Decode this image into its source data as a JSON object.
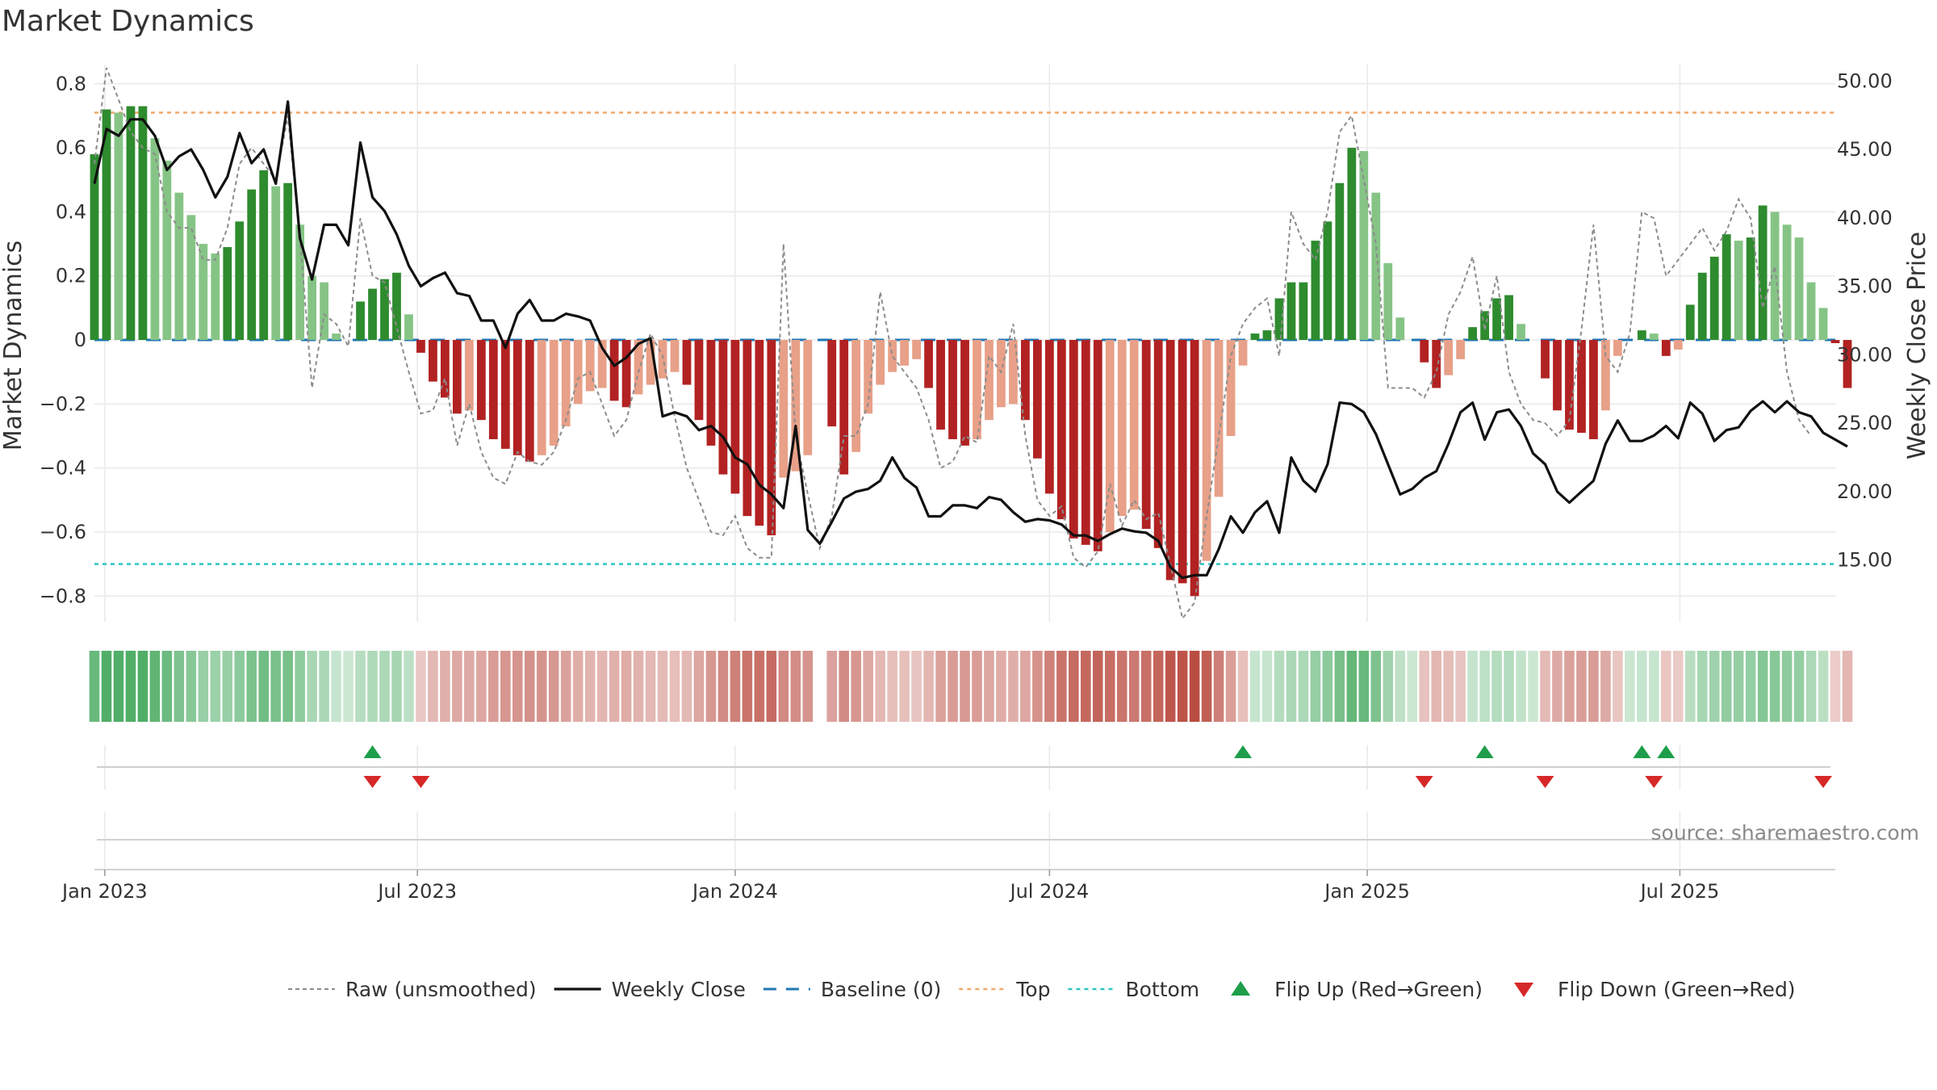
{
  "title": "Market Dynamics",
  "source": "source: sharemaestro.com",
  "colors": {
    "green_strong": "#2e8b2e",
    "green_light": "#86c486",
    "red_strong": "#b22222",
    "red_light": "#e8a088",
    "close": "#111111",
    "raw": "#8c8c8c",
    "baseline": "#1f77b4",
    "top": "#f0a868",
    "bottom": "#2ec4c4",
    "flip_up": "#1e9e4a",
    "flip_down": "#d62828"
  },
  "legend": [
    {
      "key": "raw",
      "label": "Raw (unsmoothed)"
    },
    {
      "key": "close",
      "label": "Weekly Close"
    },
    {
      "key": "baseline",
      "label": "Baseline (0)"
    },
    {
      "key": "top",
      "label": "Top"
    },
    {
      "key": "bottom",
      "label": "Bottom"
    },
    {
      "key": "flip_up",
      "label": "Flip Up (Red→Green)"
    },
    {
      "key": "flip_down",
      "label": "Flip Down (Green→Red)"
    }
  ],
  "chart_data": {
    "type": "bar",
    "title": "Market Dynamics",
    "ylabel": "Market Dynamics",
    "y2label": "Weekly Close Price",
    "ylim": [
      -0.88,
      0.86
    ],
    "y2lim": [
      10.5,
      51.2
    ],
    "yticks": [
      "0.8",
      "0.6",
      "0.4",
      "0.2",
      "0",
      "−0.2",
      "−0.4",
      "−0.6",
      "−0.8"
    ],
    "y2ticks": [
      "50.00",
      "45.00",
      "40.00",
      "35.00",
      "30.00",
      "25.00",
      "20.00",
      "15.00"
    ],
    "xlim": [
      "2022-12-26",
      "2025-09-29"
    ],
    "xticks": [
      {
        "date": "2023-01-01",
        "label": "Jan 2023"
      },
      {
        "date": "2023-07-01",
        "label": "Jul 2023"
      },
      {
        "date": "2024-01-01",
        "label": "Jan 2024"
      },
      {
        "date": "2024-07-01",
        "label": "Jul 2024"
      },
      {
        "date": "2025-01-01",
        "label": "Jan 2025"
      },
      {
        "date": "2025-07-01",
        "label": "Jul 2025"
      }
    ],
    "first_week": "2022-12-26",
    "top_level": 0.71,
    "bottom_level": -0.7,
    "baseline": 0,
    "dynamics": [
      0.58,
      0.72,
      0.71,
      0.73,
      0.73,
      0.63,
      0.56,
      0.46,
      0.39,
      0.3,
      0.27,
      0.29,
      0.37,
      0.47,
      0.53,
      0.48,
      0.49,
      0.36,
      0.2,
      0.18,
      0.02,
      0,
      0.12,
      0.16,
      0.19,
      0.21,
      0.08,
      -0.04,
      -0.13,
      -0.18,
      -0.23,
      -0.22,
      -0.25,
      -0.31,
      -0.34,
      -0.36,
      -0.38,
      -0.36,
      -0.33,
      -0.27,
      -0.2,
      -0.16,
      -0.15,
      -0.19,
      -0.21,
      -0.17,
      -0.14,
      -0.12,
      -0.1,
      -0.14,
      -0.25,
      -0.33,
      -0.42,
      -0.48,
      -0.55,
      -0.58,
      -0.61,
      -0.43,
      -0.41,
      -0.36,
      null,
      -0.27,
      -0.42,
      -0.35,
      -0.23,
      -0.14,
      -0.1,
      -0.08,
      -0.06,
      -0.15,
      -0.28,
      -0.31,
      -0.33,
      -0.31,
      -0.25,
      -0.21,
      -0.2,
      -0.25,
      -0.37,
      -0.48,
      -0.56,
      -0.62,
      -0.64,
      -0.66,
      -0.6,
      -0.55,
      -0.53,
      -0.59,
      -0.65,
      -0.75,
      -0.76,
      -0.8,
      -0.69,
      -0.49,
      -0.3,
      -0.08,
      0.02,
      0.03,
      0.13,
      0.18,
      0.18,
      0.31,
      0.37,
      0.49,
      0.6,
      0.59,
      0.46,
      0.24,
      0.07,
      0,
      -0.07,
      -0.15,
      -0.11,
      -0.06,
      0.04,
      0.09,
      0.13,
      0.14,
      0.05,
      0,
      -0.12,
      -0.22,
      -0.28,
      -0.29,
      -0.31,
      -0.22,
      -0.05,
      0,
      0.03,
      0.02,
      -0.05,
      -0.03,
      0.11,
      0.21,
      0.26,
      0.33,
      0.31,
      0.32,
      0.42,
      0.4,
      0.36,
      0.32,
      0.18,
      0.1,
      -0.01,
      -0.15
    ],
    "raw": [
      0.55,
      0.85,
      0.75,
      0.65,
      0.6,
      0.58,
      0.4,
      0.35,
      0.35,
      0.25,
      0.25,
      0.35,
      0.55,
      0.6,
      0.55,
      0.5,
      0.7,
      0.32,
      -0.15,
      0.08,
      0.05,
      -0.02,
      0.38,
      0.2,
      0.18,
      0.04,
      -0.1,
      -0.23,
      -0.22,
      -0.12,
      -0.33,
      -0.2,
      -0.35,
      -0.43,
      -0.45,
      -0.35,
      -0.38,
      -0.39,
      -0.35,
      -0.25,
      -0.12,
      -0.1,
      -0.2,
      -0.3,
      -0.25,
      -0.1,
      0.02,
      -0.05,
      -0.24,
      -0.4,
      -0.5,
      -0.6,
      -0.61,
      -0.55,
      -0.65,
      -0.68,
      -0.68,
      0.3,
      -0.3,
      -0.48,
      -0.65,
      -0.55,
      -0.3,
      -0.3,
      -0.2,
      0.15,
      -0.05,
      -0.1,
      -0.15,
      -0.25,
      -0.4,
      -0.38,
      -0.3,
      -0.32,
      -0.05,
      -0.1,
      0.05,
      -0.3,
      -0.5,
      -0.55,
      -0.52,
      -0.68,
      -0.71,
      -0.66,
      -0.45,
      -0.58,
      -0.5,
      -0.56,
      -0.54,
      -0.7,
      -0.87,
      -0.82,
      -0.55,
      -0.3,
      -0.05,
      0.05,
      0.1,
      0.13,
      -0.05,
      0.4,
      0.3,
      0.25,
      0.4,
      0.65,
      0.7,
      0.5,
      0.3,
      -0.15,
      -0.15,
      -0.15,
      -0.18,
      -0.1,
      0.08,
      0.15,
      0.26,
      0.03,
      0.2,
      -0.1,
      -0.2,
      -0.25,
      -0.26,
      -0.3,
      -0.25,
      0.03,
      0.36,
      -0.05,
      -0.1,
      0.02,
      0.4,
      0.38,
      0.2,
      0.25,
      0.3,
      0.35,
      0.28,
      0.34,
      0.44,
      0.38,
      0.1,
      0.23,
      -0.1,
      -0.25,
      -0.3
    ],
    "close": [
      42.5,
      46.5,
      46.0,
      47.2,
      47.2,
      46.0,
      43.5,
      44.5,
      45.0,
      43.5,
      41.5,
      43.0,
      46.2,
      44.0,
      45.0,
      42.5,
      48.5,
      38.5,
      35.5,
      39.5,
      39.5,
      38.0,
      45.5,
      41.5,
      40.5,
      38.8,
      36.5,
      35.0,
      35.6,
      36.0,
      34.5,
      34.3,
      32.5,
      32.5,
      30.5,
      33.0,
      34.0,
      32.5,
      32.5,
      33.0,
      32.8,
      32.5,
      30.5,
      29.2,
      29.8,
      30.8,
      31.2,
      25.5,
      25.8,
      25.5,
      24.5,
      24.8,
      24.0,
      22.5,
      22.0,
      20.5,
      19.8,
      18.8,
      24.8,
      17.2,
      16.2,
      17.8,
      19.5,
      20.0,
      20.2,
      20.8,
      22.5,
      21.0,
      20.3,
      18.2,
      18.2,
      19.0,
      19.0,
      18.8,
      19.6,
      19.4,
      18.5,
      17.8,
      18.0,
      17.9,
      17.6,
      16.8,
      16.8,
      16.4,
      16.9,
      17.3,
      17.1,
      17.0,
      16.4,
      14.5,
      13.7,
      13.9,
      13.9,
      15.8,
      18.2,
      17.0,
      18.5,
      19.3,
      17.0,
      22.5,
      20.8,
      20.0,
      22.0,
      26.5,
      26.4,
      25.8,
      24.2,
      22.0,
      19.8,
      20.2,
      21.0,
      21.5,
      23.5,
      25.8,
      26.5,
      23.8,
      25.8,
      26.0,
      24.8,
      22.8,
      22.0,
      20.0,
      19.2,
      20.0,
      20.8,
      23.5,
      25.2,
      23.7,
      23.7,
      24.1,
      24.8,
      23.9,
      26.5,
      25.7,
      23.7,
      24.5,
      24.7,
      25.9,
      26.6,
      25.8,
      26.6,
      25.8,
      25.5,
      24.3,
      23.8,
      23.3
    ],
    "flips_up": [
      "2023-06-05",
      "2024-10-21",
      "2025-03-10",
      "2025-06-09",
      "2025-06-23"
    ],
    "flips_down": [
      "2023-06-05",
      "2023-07-03",
      "2025-02-03",
      "2025-04-14",
      "2025-06-16",
      "2025-09-22"
    ]
  }
}
